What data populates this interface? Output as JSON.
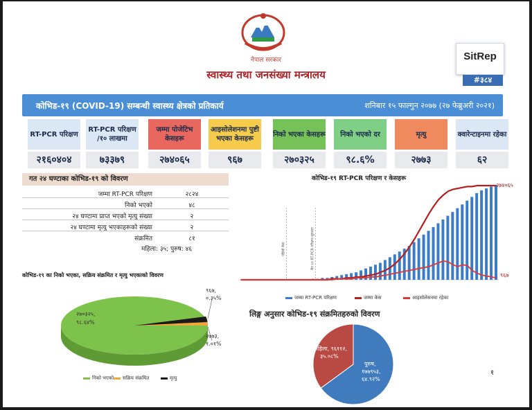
{
  "header": {
    "government": "नेपाल सरकार",
    "ministry": "स्वास्थ्य तथा जनसंख्या मन्त्रालय",
    "sitrep_label": "SitRep",
    "sitrep_number": "#३८४"
  },
  "banner": {
    "title": "कोभिड-१९ (COVID-19) सम्बन्धी स्वास्थ्य क्षेत्रको प्रतिकार्य",
    "date": "शनिबार १५ फाल्गुन २०७७ (२७ फेब्रुअरी २०२१)"
  },
  "cards": [
    {
      "label": "RT-PCR परिक्षण",
      "value": "२१६०४०४",
      "color": "#dbe7f4"
    },
    {
      "label": "RT-PCR परिक्षण /१० लाखमा",
      "value": "७३३७९",
      "color": "#dbe7f4"
    },
    {
      "label": "जम्मा पोजेटिभ केसहरू",
      "value": "२७४०६५",
      "color": "#e8685f"
    },
    {
      "label": "आइसोलेशनमा पुष्टी भएका केसहरू",
      "value": "९६७",
      "color": "#f7cc4d"
    },
    {
      "label": "निको भएका केसहरू",
      "value": "२७०३२५",
      "color": "#77c159"
    },
    {
      "label": "निको भएको दर",
      "value": "९८.६%",
      "color": "#7fcf86"
    },
    {
      "label": "मृत्यु",
      "value": "२७७३",
      "color": "#ef8a5e"
    },
    {
      "label": "क्वारेन्टाइनमा रहेका",
      "value": "६२",
      "color": "#dbe7f4"
    }
  ],
  "table": {
    "title": "गत २४ घण्टाका कोभिड-१९ को विवरण",
    "rows": [
      {
        "label": "जम्मा RT-PCR परिक्षण",
        "value": "२८२४"
      },
      {
        "label": "निको भएको",
        "value": "४८"
      },
      {
        "label": "२४ घण्टामा प्राप्त भएको मृत्यु संख्या",
        "value": "२"
      },
      {
        "label": "२४ घण्टामा मृत्यु भएकाहरूको संख्या",
        "value": "२"
      },
      {
        "label": "संक्रमित",
        "value": "८१"
      }
    ],
    "gender_split": "महिला: ३५; पुरुष: ४६"
  },
  "pie": {
    "title": "कोभिड-१९ का निको भएका, सक्रिय संक्रमित र मृत्यु भएकाको विवरण",
    "green_label_1": "२७०३२५,",
    "green_label_2": "९८.६४%",
    "active_label_1": "९६७,",
    "active_label_2": "०.३५%",
    "death_label_1": "२७७३,",
    "death_label_2": "१.०१%",
    "legend": [
      "निको भएको",
      "सक्रिय संक्रमित",
      "मृत्यु"
    ],
    "colors": [
      "#7dc24b",
      "#f3a63a",
      "#1a1a1a"
    ]
  },
  "chart_data": [
    {
      "type": "bar",
      "title": "कोभिड-१९ RT-PCR परिक्षण र केसहरू",
      "series": [
        {
          "name": "जम्मा RT-PCR परिक्षण",
          "kind": "bar",
          "values": [
            0,
            0,
            0,
            0,
            0,
            0,
            0,
            0,
            0,
            0,
            0,
            0,
            0,
            0,
            0,
            1,
            1,
            2,
            2,
            3,
            4,
            5,
            6,
            7,
            8,
            10,
            12,
            14,
            16,
            18,
            21,
            24,
            27,
            30,
            33,
            36,
            40,
            44,
            48,
            52,
            56,
            60,
            64,
            68,
            72,
            76,
            80,
            84,
            88,
            92,
            95,
            97,
            99,
            100
          ]
        },
        {
          "name": "जम्मा केस",
          "kind": "line",
          "values": [
            0,
            0,
            0,
            0,
            0,
            0,
            0,
            0,
            0,
            0,
            0,
            0,
            0,
            0,
            0,
            0,
            0,
            0,
            0,
            1,
            1,
            1,
            2,
            2,
            3,
            3,
            4,
            5,
            6,
            8,
            10,
            13,
            17,
            22,
            28,
            35,
            43,
            52,
            61,
            70,
            78,
            85,
            90,
            94,
            96,
            97,
            98,
            99,
            99,
            100,
            100,
            100,
            100,
            100
          ]
        },
        {
          "name": "आइसोलेसनमा रहेका",
          "kind": "line",
          "values": [
            0,
            0,
            0,
            0,
            0,
            0,
            0,
            0,
            0,
            0,
            0,
            0,
            0,
            0,
            0,
            0,
            0,
            0,
            0,
            0,
            1,
            1,
            1,
            1,
            2,
            2,
            2,
            3,
            3,
            4,
            5,
            6,
            7,
            8,
            9,
            10,
            11,
            12,
            13,
            14,
            16,
            18,
            20,
            19,
            16,
            14,
            16,
            15,
            10,
            7,
            5,
            4,
            3,
            2
          ]
        }
      ],
      "colors": [
        "#3a7cc7",
        "#b3201f",
        "#d93a3a"
      ],
      "end_labels": {
        "cases": "२७४०६५",
        "isolation": "९६७"
      },
      "annotations": [
        "पहिलो केस",
        "चैत ११ RT-PCR परिक्षण सुरुवात"
      ]
    },
    {
      "type": "pie",
      "title": "लिङ्ग अनुसार कोभिड-१९ संक्रमितहरुको विवरण",
      "slices": [
        {
          "name": "पुरुष",
          "value": 64.92,
          "label_1": "पुरुष,",
          "label_2": "१७७९५३,",
          "label_3": "६४.९२%"
        },
        {
          "name": "महिला",
          "value": 35.08,
          "label_1": "महिला, ९६११२,",
          "label_2": "३५.०८%"
        }
      ],
      "colors": [
        "#3f7bbd",
        "#b84a43"
      ]
    }
  ],
  "page_number": "१"
}
